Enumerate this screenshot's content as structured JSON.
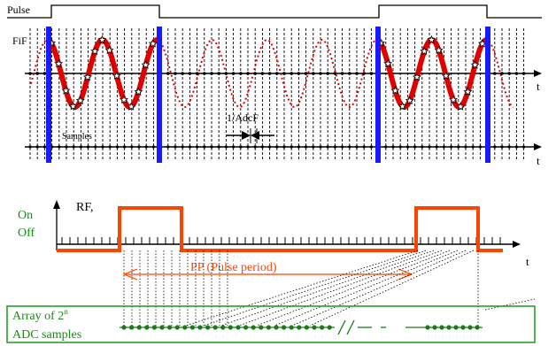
{
  "labels": {
    "pulse": "Pulse",
    "fif": "FiF",
    "t": "t",
    "samples": "Samples",
    "adcf": "1/AdcF",
    "rf": "RF,",
    "on": "On",
    "off": "Off",
    "pp": "PP (Pulse period)",
    "array_line1": "Array of 2",
    "array_sup": "n",
    "array_line2": "ADC samples"
  },
  "colors": {
    "pulse": "#000000",
    "sine": "#e00000",
    "marker": "#1a1aff",
    "rf_pulse": "#ff4400",
    "on_off_text": "#1a8a1a",
    "box": "#1a9a1a",
    "dot": "#1a7a1a"
  }
}
